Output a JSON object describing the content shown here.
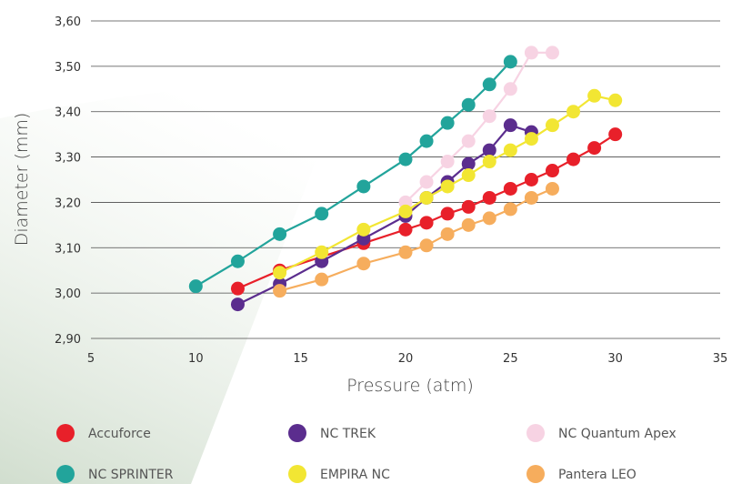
{
  "chart_data": {
    "type": "line",
    "title": "",
    "xlabel": "Pressure (atm)",
    "ylabel": "Diameter (mm)",
    "xlim": [
      5,
      35
    ],
    "ylim": [
      2.9,
      3.6
    ],
    "x_ticks": [
      5,
      10,
      15,
      20,
      25,
      30,
      35
    ],
    "x_tick_labels": [
      "5",
      "10",
      "15",
      "20",
      "25",
      "30",
      "35"
    ],
    "y_ticks": [
      2.9,
      3.0,
      3.1,
      3.2,
      3.3,
      3.4,
      3.5,
      3.6
    ],
    "y_tick_labels": [
      "2,90",
      "3,00",
      "3,10",
      "3,20",
      "3,30",
      "3,40",
      "3,50",
      "3,60"
    ],
    "grid": "horizontal",
    "legend_position": "bottom",
    "series": [
      {
        "name": "Accuforce",
        "color": "#e8202a",
        "x": [
          12,
          14,
          18,
          20,
          21,
          22,
          23,
          24,
          25,
          26,
          27,
          28,
          29,
          30
        ],
        "y": [
          3.01,
          3.05,
          3.11,
          3.14,
          3.155,
          3.175,
          3.19,
          3.21,
          3.23,
          3.25,
          3.27,
          3.295,
          3.32,
          3.35
        ]
      },
      {
        "name": "NC TREK",
        "color": "#5b2d8e",
        "x": [
          12,
          14,
          16,
          18,
          20,
          21,
          22,
          23,
          24,
          25,
          26
        ],
        "y": [
          2.975,
          3.02,
          3.07,
          3.12,
          3.17,
          3.21,
          3.245,
          3.285,
          3.315,
          3.37,
          3.355
        ]
      },
      {
        "name": "NC Quantum Apex",
        "color": "#f7d3e3",
        "x": [
          20,
          21,
          22,
          23,
          24,
          25,
          26,
          27
        ],
        "y": [
          3.2,
          3.245,
          3.29,
          3.335,
          3.39,
          3.45,
          3.53,
          3.53
        ]
      },
      {
        "name": "NC SPRINTER",
        "color": "#22a49b",
        "x": [
          10,
          12,
          14,
          16,
          18,
          20,
          21,
          22,
          23,
          24,
          25
        ],
        "y": [
          3.015,
          3.07,
          3.13,
          3.175,
          3.235,
          3.295,
          3.335,
          3.375,
          3.415,
          3.46,
          3.51
        ]
      },
      {
        "name": "EMPIRA NC",
        "color": "#f2e633",
        "x": [
          14,
          16,
          18,
          20,
          21,
          22,
          23,
          24,
          25,
          26,
          27,
          28,
          29,
          30
        ],
        "y": [
          3.045,
          3.09,
          3.14,
          3.18,
          3.21,
          3.235,
          3.26,
          3.29,
          3.315,
          3.34,
          3.37,
          3.4,
          3.435,
          3.425
        ]
      },
      {
        "name": "Pantera LEO",
        "color": "#f6ad5d",
        "x": [
          14,
          16,
          18,
          20,
          21,
          22,
          23,
          24,
          25,
          26,
          27
        ],
        "y": [
          3.005,
          3.03,
          3.065,
          3.09,
          3.105,
          3.13,
          3.15,
          3.165,
          3.185,
          3.21,
          3.23
        ]
      }
    ],
    "legend_order": [
      "Accuforce",
      "NC TREK",
      "NC Quantum Apex",
      "NC SPRINTER",
      "EMPIRA NC",
      "Pantera LEO"
    ]
  }
}
